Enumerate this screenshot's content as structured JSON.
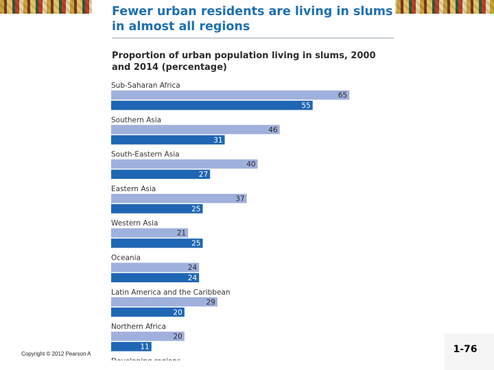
{
  "slide": {
    "copyright": "Copyright © 2012 Pearson A",
    "slide_number": "1-76"
  },
  "infographic": {
    "headline": "Fewer urban residents are living in slums in almost all regions"
  },
  "chart_data": {
    "type": "bar",
    "orientation": "horizontal",
    "title": "Proportion of urban population living in slums, 2000 and 2014 (percentage)",
    "categories": [
      "Sub-Saharan Africa",
      "Southern Asia",
      "South-Eastern Asia",
      "Eastern Asia",
      "Western Asia",
      "Oceania",
      "Latin America and the Caribbean",
      "Northern Africa",
      "Developing regions"
    ],
    "series": [
      {
        "values": [
          65,
          46,
          40,
          37,
          21,
          24,
          29,
          20,
          null
        ]
      },
      {
        "values": [
          55,
          31,
          27,
          25,
          25,
          24,
          20,
          11,
          null
        ]
      }
    ],
    "colors": [
      "#9fb0dc",
      "#1f66b4"
    ],
    "xlim": [
      0,
      100
    ],
    "data_labels": true,
    "grid": false
  }
}
